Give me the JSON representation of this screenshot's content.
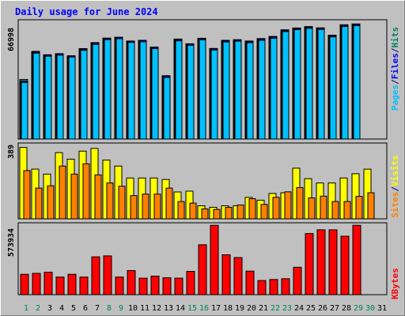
{
  "title": "Daily usage for June 2024",
  "colors": {
    "hits": "#00805c",
    "files": "#0000ff",
    "pages": "#00c0ff",
    "visits": "#ffff00",
    "sites": "#ff8000",
    "kbytes": "#ff0000",
    "weekend_day_label": "#00805c",
    "background": "#c0c0c0"
  },
  "legend": {
    "top": [
      "Hits",
      "Files",
      "Pages"
    ],
    "middle": [
      "Visits",
      "Sites"
    ],
    "bottom": [
      "KBytes"
    ],
    "separator": "/"
  },
  "chart_data": [
    {
      "type": "bar",
      "panel": "hits-files-pages",
      "categories": [
        "1",
        "2",
        "3",
        "4",
        "5",
        "6",
        "7",
        "8",
        "9",
        "10",
        "11",
        "12",
        "13",
        "14",
        "15",
        "16",
        "17",
        "18",
        "19",
        "20",
        "21",
        "22",
        "23",
        "24",
        "25",
        "26",
        "27",
        "28",
        "29",
        "30",
        "31"
      ],
      "y_tick_label": "66998",
      "ylim": [
        0,
        76500
      ],
      "series": [
        {
          "name": "Hits",
          "values": [
            38700,
            57000,
            54800,
            55500,
            54100,
            58800,
            62700,
            65600,
            66200,
            63700,
            64200,
            59800,
            41200,
            65000,
            61900,
            65500,
            58900,
            64200,
            64600,
            63700,
            65300,
            66700,
            71000,
            72200,
            73100,
            72300,
            67500,
            74300,
            74800,
            0,
            0
          ]
        },
        {
          "name": "Files",
          "values": [
            37500,
            56500,
            54500,
            55300,
            54000,
            58400,
            62200,
            65300,
            66000,
            63400,
            64000,
            59500,
            40800,
            64500,
            61600,
            65200,
            58700,
            63800,
            64300,
            63300,
            64900,
            66300,
            70500,
            71700,
            72600,
            71800,
            67100,
            73800,
            74400,
            0,
            0
          ]
        },
        {
          "name": "Pages",
          "values": [
            36700,
            55800,
            53800,
            54500,
            53300,
            57700,
            61500,
            64600,
            65200,
            62800,
            63200,
            58800,
            40000,
            63800,
            60900,
            64500,
            57900,
            63100,
            63600,
            62600,
            64200,
            65500,
            69800,
            71100,
            72000,
            71200,
            66400,
            73100,
            73700,
            0,
            0
          ]
        }
      ]
    },
    {
      "type": "bar",
      "panel": "visits-sites",
      "categories": [
        "1",
        "2",
        "3",
        "4",
        "5",
        "6",
        "7",
        "8",
        "9",
        "10",
        "11",
        "12",
        "13",
        "14",
        "15",
        "16",
        "17",
        "18",
        "19",
        "20",
        "21",
        "22",
        "23",
        "24",
        "25",
        "26",
        "27",
        "28",
        "29",
        "30",
        "31"
      ],
      "y_tick_label": "389",
      "ylim": [
        0,
        387
      ],
      "series": [
        {
          "name": "Visits",
          "values": [
            372,
            259,
            233,
            345,
            311,
            353,
            367,
            306,
            275,
            213,
            213,
            213,
            205,
            140,
            144,
            68,
            60,
            68,
            68,
            112,
            97,
            132,
            136,
            264,
            209,
            187,
            187,
            213,
            235,
            259,
            0
          ]
        },
        {
          "name": "Sites",
          "values": [
            251,
            160,
            172,
            275,
            233,
            287,
            229,
            187,
            170,
            121,
            129,
            129,
            160,
            90,
            82,
            52,
            49,
            60,
            72,
            105,
            75,
            112,
            141,
            163,
            109,
            118,
            90,
            90,
            117,
            136,
            0
          ]
        }
      ]
    },
    {
      "type": "bar",
      "panel": "kbytes",
      "categories": [
        "1",
        "2",
        "3",
        "4",
        "5",
        "6",
        "7",
        "8",
        "9",
        "10",
        "11",
        "12",
        "13",
        "14",
        "15",
        "16",
        "17",
        "18",
        "19",
        "20",
        "21",
        "22",
        "23",
        "24",
        "25",
        "26",
        "27",
        "28",
        "29",
        "30",
        "31"
      ],
      "y_tick_label": "573934",
      "ylim": [
        0,
        682000
      ],
      "series": [
        {
          "name": "KBytes",
          "values": [
            198000,
            207000,
            218000,
            171000,
            198000,
            171000,
            367000,
            376000,
            171000,
            234000,
            160000,
            180000,
            164000,
            160000,
            226000,
            484000,
            673000,
            387000,
            360000,
            228000,
            137000,
            147000,
            155000,
            266000,
            593000,
            629000,
            629000,
            567000,
            673000,
            0,
            0
          ]
        }
      ]
    }
  ],
  "x_labels": [
    "1",
    "2",
    "3",
    "4",
    "5",
    "6",
    "7",
    "8",
    "9",
    "10",
    "11",
    "12",
    "13",
    "14",
    "15",
    "16",
    "17",
    "18",
    "19",
    "20",
    "21",
    "22",
    "23",
    "24",
    "25",
    "26",
    "27",
    "28",
    "29",
    "30",
    "31"
  ],
  "weekend_days": [
    1,
    2,
    8,
    9,
    15,
    16,
    22,
    23,
    29,
    30
  ]
}
